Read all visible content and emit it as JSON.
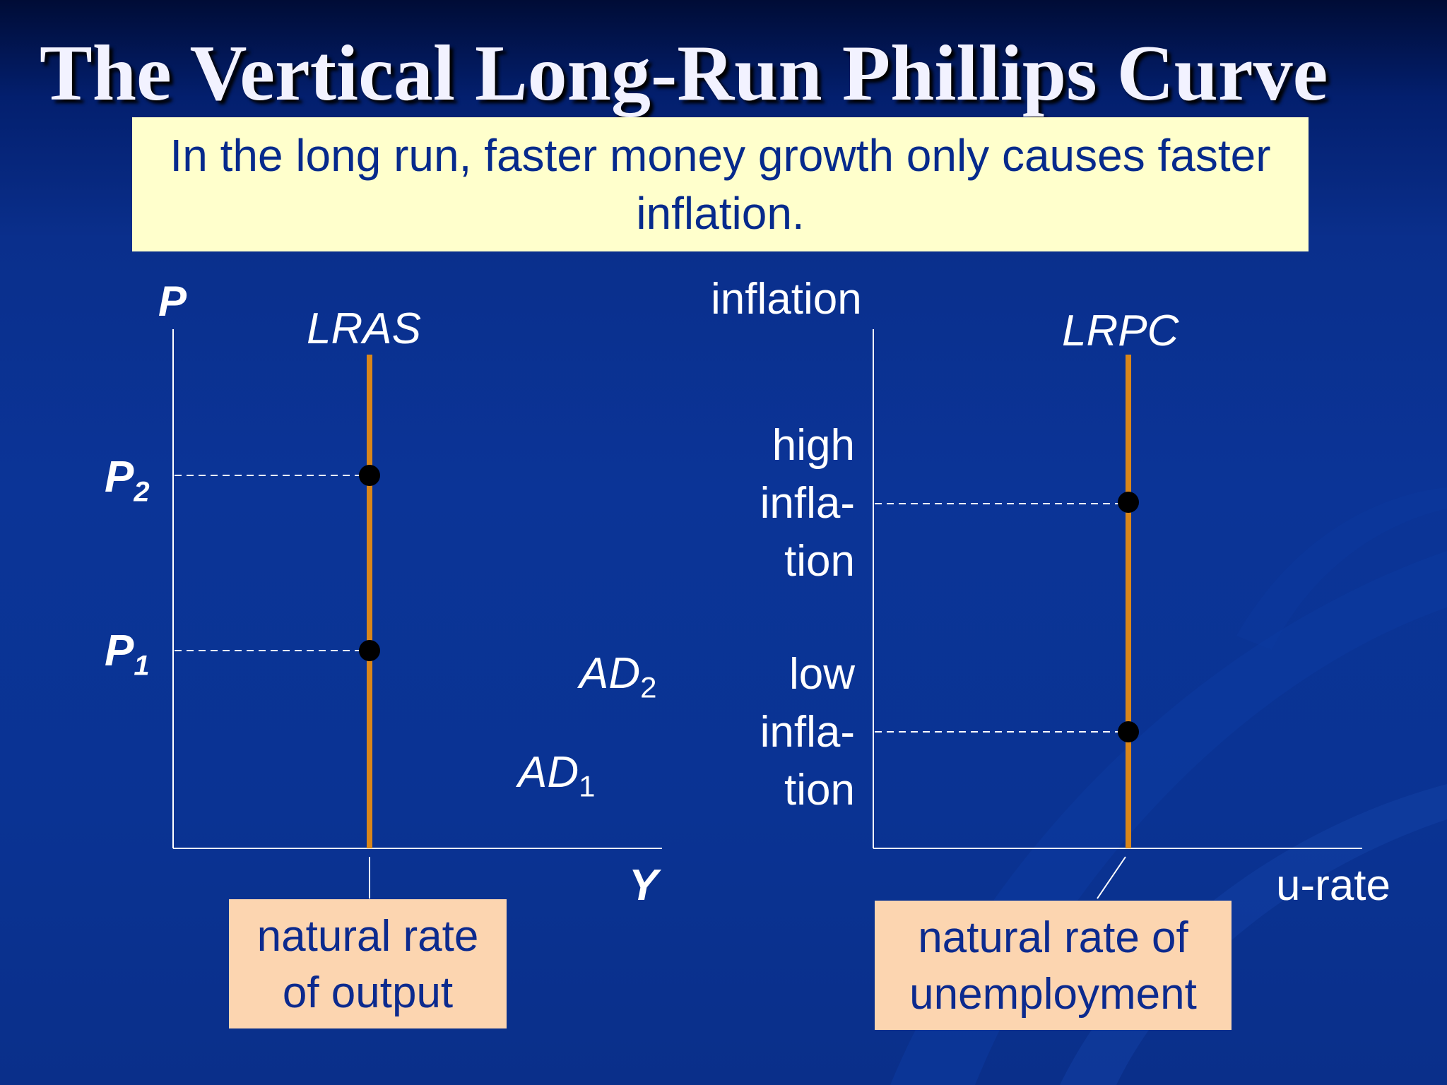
{
  "slide": {
    "title": "The Vertical Long-Run Phillips Curve",
    "callout": "In the long run, faster money growth only causes faster inflation."
  },
  "left_graph": {
    "y_axis_label": "P",
    "x_axis_label": "Y",
    "curve_label": "LRAS",
    "p2_label": "P",
    "p2_sub": "2",
    "p1_label": "P",
    "p1_sub": "1",
    "ad2_label": "AD",
    "ad2_sub": "2",
    "ad1_label": "AD",
    "ad1_sub": "1",
    "note_line1": "natural rate",
    "note_line2": "of output"
  },
  "right_graph": {
    "y_axis_label": "inflation",
    "x_axis_label": "u-rate",
    "curve_label": "LRPC",
    "high_line1": "high",
    "high_line2": "infla-",
    "high_line3": "tion",
    "low_line1": "low",
    "low_line2": "infla-",
    "low_line3": "tion",
    "note_line1": "natural rate of",
    "note_line2": "unemployment"
  },
  "colors": {
    "curve": "#d9861a",
    "callout_bg": "#ffffcc",
    "note_bg": "#fcd5b0",
    "text_dark": "#0c2a8e"
  }
}
